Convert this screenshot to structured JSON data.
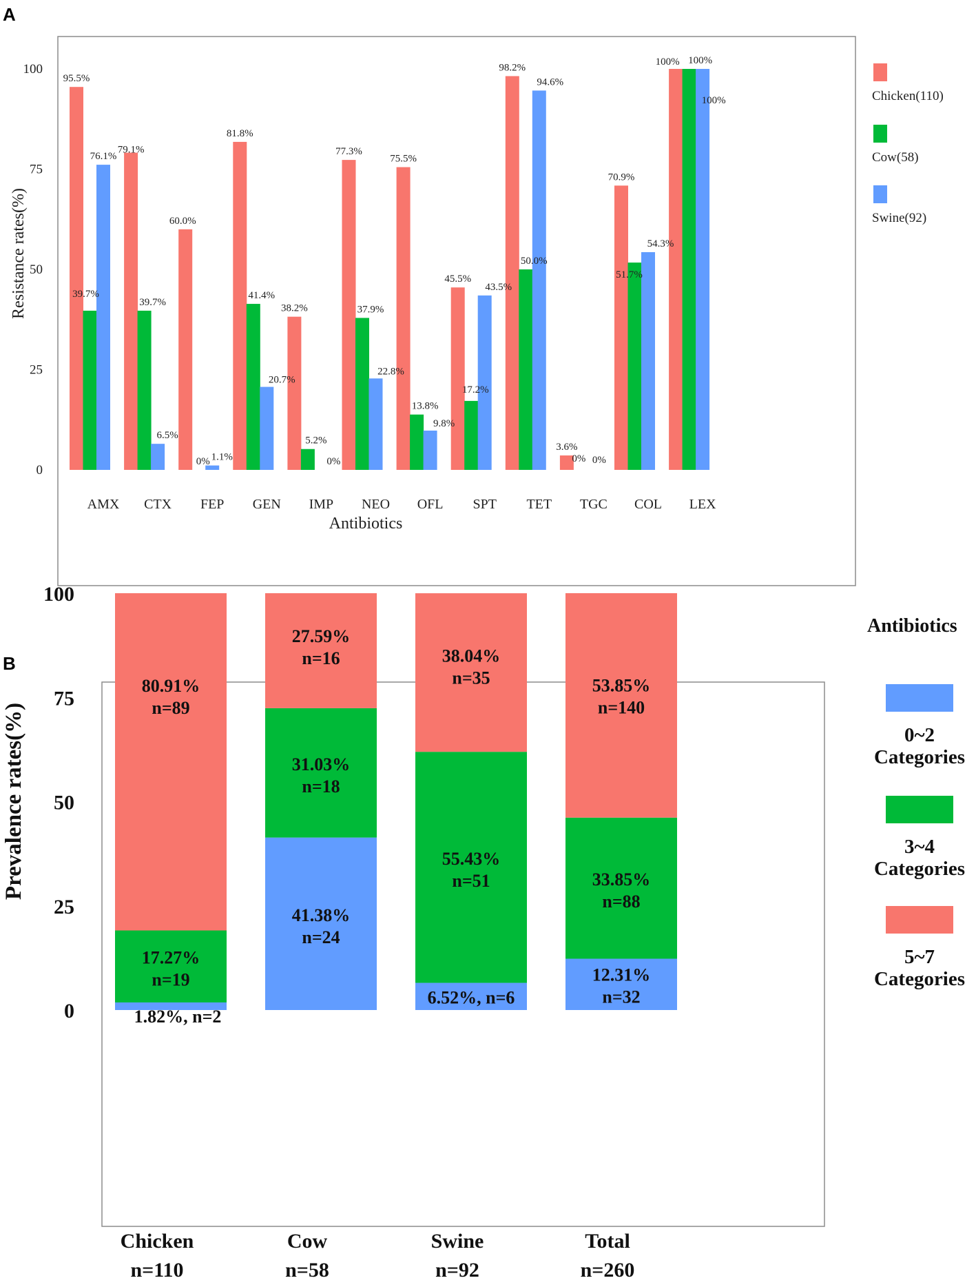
{
  "panel_a_label": "A",
  "panel_b_label": "B",
  "chart_data": [
    {
      "type": "bar",
      "panel": "A",
      "xlabel": "Antibiotics",
      "ylabel": "Resistance rates(%)",
      "ylim": [
        0,
        100
      ],
      "yticks": [
        0,
        25,
        50,
        75,
        100
      ],
      "grid": false,
      "legend_position": "right",
      "categories": [
        "AMX",
        "CTX",
        "FEP",
        "GEN",
        "IMP",
        "NEO",
        "OFL",
        "SPT",
        "TET",
        "TGC",
        "COL",
        "LEX"
      ],
      "series": [
        {
          "name": "Chicken(110)",
          "color": "#F8766D",
          "values": [
            95.5,
            79.1,
            60.0,
            81.8,
            38.2,
            77.3,
            75.5,
            45.5,
            98.2,
            3.6,
            70.9,
            100
          ],
          "labels": [
            "95.5%",
            "79.1%",
            "60.0%",
            "81.8%",
            "38.2%",
            "77.3%",
            "75.5%",
            "45.5%",
            "98.2%",
            "3.6%",
            "70.9%",
            "100%"
          ]
        },
        {
          "name": "Cow(58)",
          "color": "#00BA38",
          "values": [
            39.7,
            39.7,
            0,
            41.4,
            5.2,
            37.9,
            13.8,
            17.2,
            50.0,
            0,
            51.7,
            100
          ],
          "labels": [
            "39.7%",
            "39.7%",
            "0%",
            "41.4%",
            "5.2%",
            "37.9%",
            "13.8%",
            "17.2%",
            "50.0%",
            "0%",
            "51.7%",
            "100%"
          ]
        },
        {
          "name": "Swine(92)",
          "color": "#619CFF",
          "values": [
            76.1,
            6.5,
            1.1,
            20.7,
            0,
            22.8,
            9.8,
            43.5,
            94.6,
            0,
            54.3,
            100
          ],
          "labels": [
            "76.1%",
            "6.5%",
            "1.1%",
            "20.7%",
            "0%",
            "22.8%",
            "9.8%",
            "43.5%",
            "94.6%",
            "0%",
            "54.3%",
            "100%"
          ]
        }
      ]
    },
    {
      "type": "bar",
      "stacked": true,
      "panel": "B",
      "xlabel": "",
      "ylabel": "Prevalence rates(%)",
      "ylim": [
        0,
        100
      ],
      "yticks": [
        0,
        25,
        50,
        75,
        100
      ],
      "grid": false,
      "legend_title": "Antibiotics",
      "legend_position": "right",
      "categories": [
        "Chicken",
        "Cow",
        "Swine",
        "Total"
      ],
      "category_counts": [
        "n=110",
        "n=58",
        "n=92",
        "n=260"
      ],
      "series": [
        {
          "name_line1": "0~2",
          "name_line2": "Categories",
          "color": "#619CFF",
          "values": [
            1.82,
            41.38,
            6.52,
            12.31
          ],
          "pct_labels": [
            "1.82%, n=2",
            "41.38%",
            "6.52%, n=6",
            "12.31%"
          ],
          "n_labels": [
            "",
            "n=24",
            "",
            "n=32"
          ]
        },
        {
          "name_line1": "3~4",
          "name_line2": "Categories",
          "color": "#00BA38",
          "values": [
            17.27,
            31.03,
            55.43,
            33.85
          ],
          "pct_labels": [
            "17.27%",
            "31.03%",
            "55.43%",
            "33.85%"
          ],
          "n_labels": [
            "n=19",
            "n=18",
            "n=51",
            "n=88"
          ]
        },
        {
          "name_line1": "5~7",
          "name_line2": "Categories",
          "color": "#F8766D",
          "values": [
            80.91,
            27.59,
            38.04,
            53.85
          ],
          "pct_labels": [
            "80.91%",
            "27.59%",
            "38.04%",
            "53.85%"
          ],
          "n_labels": [
            "n=89",
            "n=16",
            "n=35",
            "n=140"
          ]
        }
      ]
    }
  ]
}
